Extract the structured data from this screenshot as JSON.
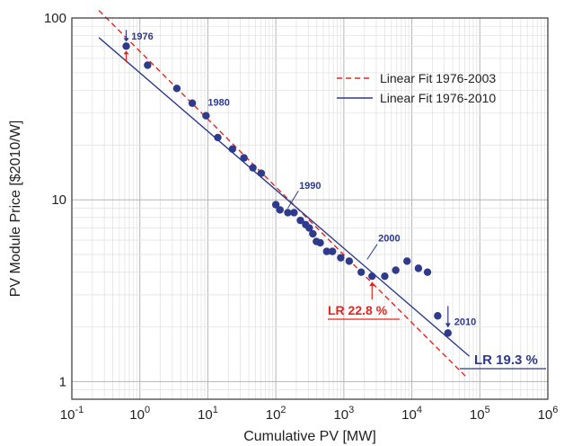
{
  "chart_data": {
    "type": "scatter",
    "title": "",
    "xlabel": "Cumulative PV [MW]",
    "ylabel": "PV Module Price [$2010/W]",
    "xscale": "log",
    "yscale": "log",
    "xlim": [
      0.1,
      1000000
    ],
    "ylim": [
      0.8,
      100
    ],
    "grid": true,
    "legend_position": "top-right",
    "x_ticks": [
      {
        "base": "10",
        "exp": "-1"
      },
      {
        "base": "10",
        "exp": "0"
      },
      {
        "base": "10",
        "exp": "1"
      },
      {
        "base": "10",
        "exp": "2"
      },
      {
        "base": "10",
        "exp": "3"
      },
      {
        "base": "10",
        "exp": "4"
      },
      {
        "base": "10",
        "exp": "5"
      },
      {
        "base": "10",
        "exp": "6"
      }
    ],
    "y_ticks": [
      "1",
      "10",
      "100"
    ],
    "points": {
      "color": "#2e3a8c",
      "x": [
        0.63,
        1.3,
        3.5,
        5.9,
        9.4,
        14,
        23,
        34,
        46,
        61,
        100,
        115,
        150,
        185,
        230,
        275,
        310,
        350,
        395,
        450,
        560,
        680,
        900,
        1200,
        1800,
        2600,
        4000,
        5800,
        8500,
        12500,
        17000,
        24000,
        34000
      ],
      "y": [
        70,
        55,
        41,
        34,
        29,
        22,
        19,
        17,
        15,
        14,
        9.4,
        8.8,
        8.5,
        8.5,
        7.7,
        7.3,
        7.0,
        6.5,
        5.9,
        5.8,
        5.2,
        5.2,
        4.8,
        4.6,
        4.0,
        3.8,
        3.8,
        4.1,
        4.6,
        4.2,
        4.0,
        2.3,
        1.85
      ]
    },
    "series": [
      {
        "name": "Linear Fit 1976-2003",
        "style": "dashed",
        "color": "#e8231c",
        "x": [
          0.25,
          65000
        ],
        "y": [
          110,
          1.05
        ]
      },
      {
        "name": "Linear Fit 1976-2010",
        "style": "solid",
        "color": "#2e3a8c",
        "x": [
          0.25,
          70000
        ],
        "y": [
          78,
          1.38
        ]
      }
    ],
    "annotations": {
      "years": [
        {
          "text": "1976",
          "x": 0.75,
          "y": 76
        },
        {
          "text": "1980",
          "x": 10,
          "y": 33
        },
        {
          "text": "1990",
          "x": 220,
          "y": 11.5
        },
        {
          "text": "2000",
          "x": 3200,
          "y": 5.9
        },
        {
          "text": "2010",
          "x": 42000,
          "y": 2.05
        }
      ],
      "learning_rates": [
        {
          "text": "LR 22.8 %",
          "color": "#e8231c"
        },
        {
          "text": "LR 19.3 %",
          "color": "#2e3a8c"
        }
      ]
    }
  }
}
